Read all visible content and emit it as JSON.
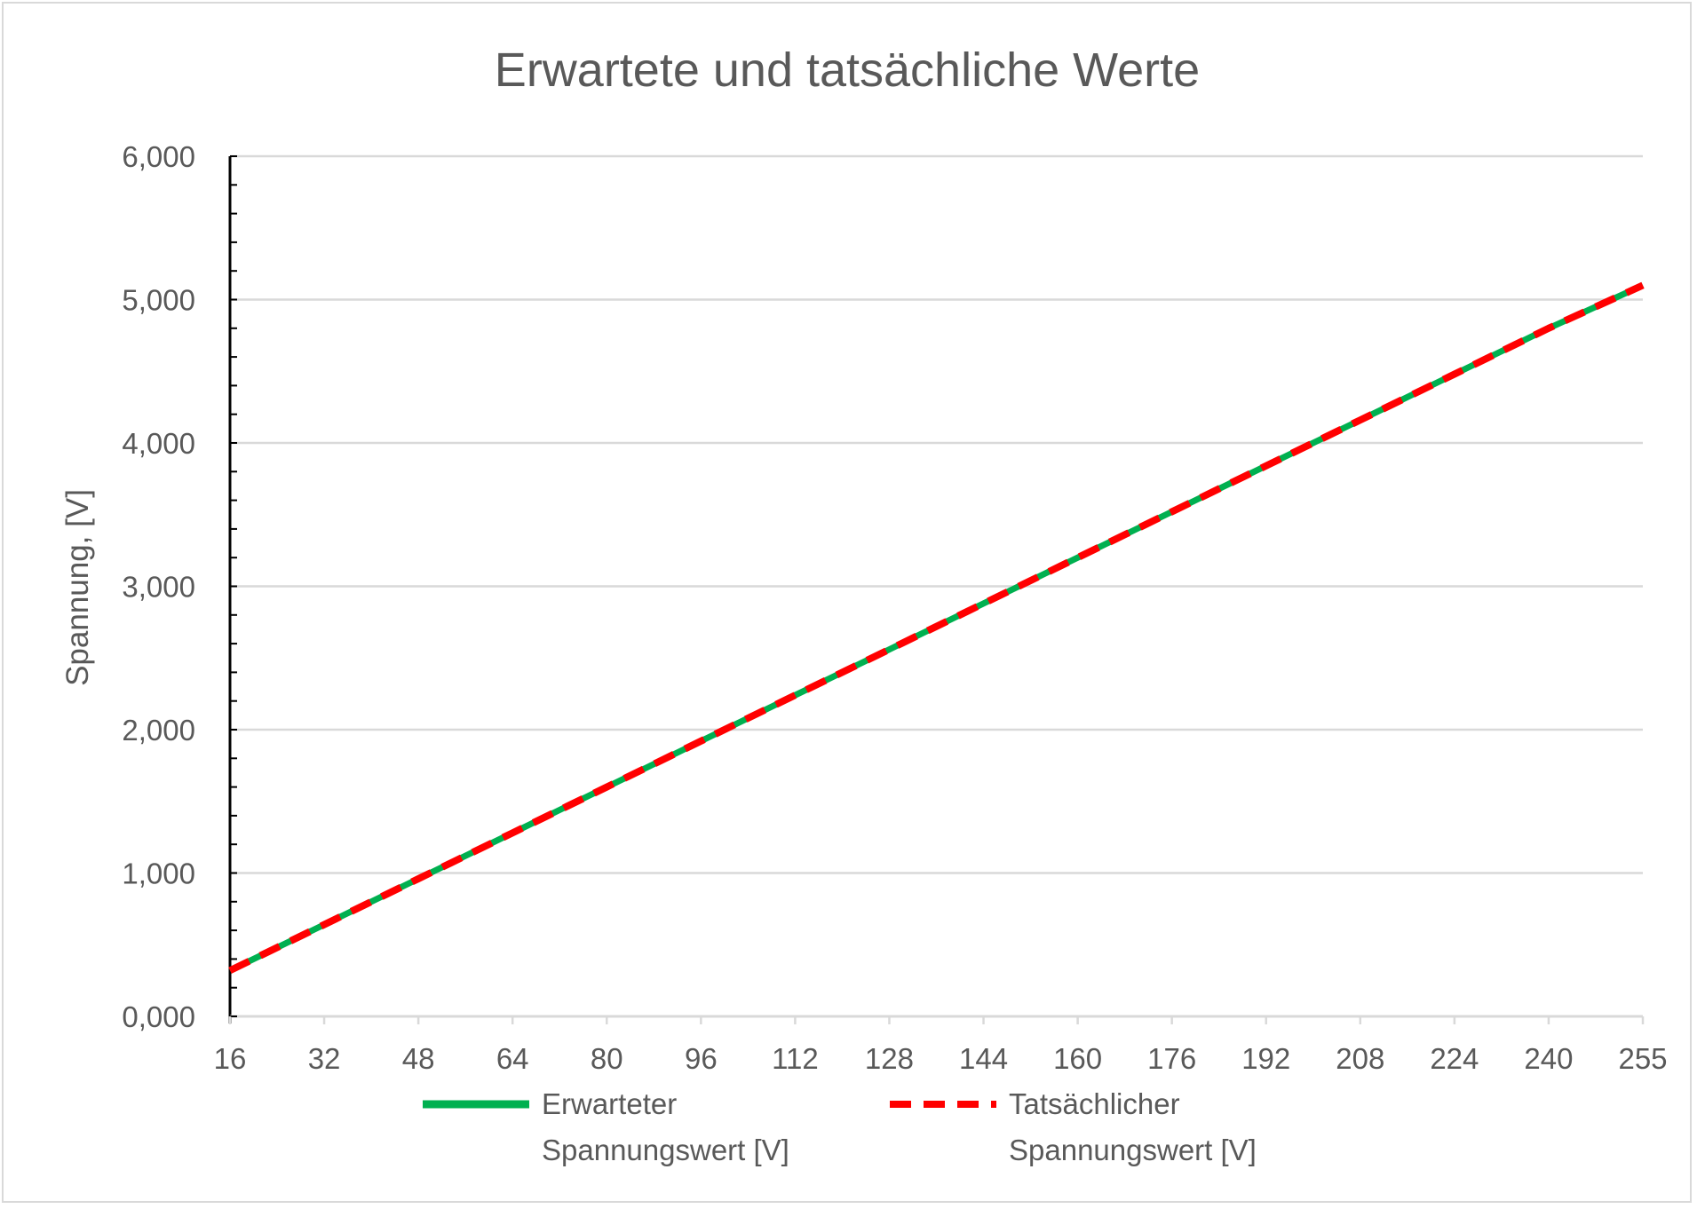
{
  "chart_data": {
    "type": "line",
    "title": "Erwartete und tatsächliche Werte",
    "xlabel": "",
    "ylabel": "Spannung, [V]",
    "x": [
      16,
      32,
      48,
      64,
      80,
      96,
      112,
      128,
      144,
      160,
      176,
      192,
      208,
      224,
      240,
      255
    ],
    "x_tick_labels": [
      "16",
      "32",
      "48",
      "64",
      "80",
      "96",
      "112",
      "128",
      "144",
      "160",
      "176",
      "192",
      "208",
      "224",
      "240",
      "255"
    ],
    "y_tick_labels": [
      "0,000",
      "1,000",
      "2,000",
      "3,000",
      "4,000",
      "5,000",
      "6,000"
    ],
    "y_ticks": [
      0,
      1,
      2,
      3,
      4,
      5,
      6
    ],
    "ylim": [
      0,
      6
    ],
    "grid": true,
    "legend_position": "bottom",
    "series": [
      {
        "name": "Erwarteter Spannungswert [V]",
        "name_lines": [
          "Erwarteter",
          "Spannungswert [V]"
        ],
        "color": "#00b050",
        "style": "solid",
        "values": [
          0.32,
          0.64,
          0.96,
          1.28,
          1.6,
          1.92,
          2.24,
          2.56,
          2.88,
          3.2,
          3.52,
          3.84,
          4.16,
          4.48,
          4.8,
          5.1
        ]
      },
      {
        "name": "Tatsächlicher Spannungswert [V]",
        "name_lines": [
          "Tatsächlicher",
          "Spannungswert [V]"
        ],
        "color": "#ff0000",
        "style": "dashed",
        "values": [
          0.32,
          0.64,
          0.96,
          1.28,
          1.6,
          1.92,
          2.24,
          2.56,
          2.88,
          3.2,
          3.52,
          3.84,
          4.16,
          4.48,
          4.8,
          5.1
        ]
      }
    ]
  }
}
